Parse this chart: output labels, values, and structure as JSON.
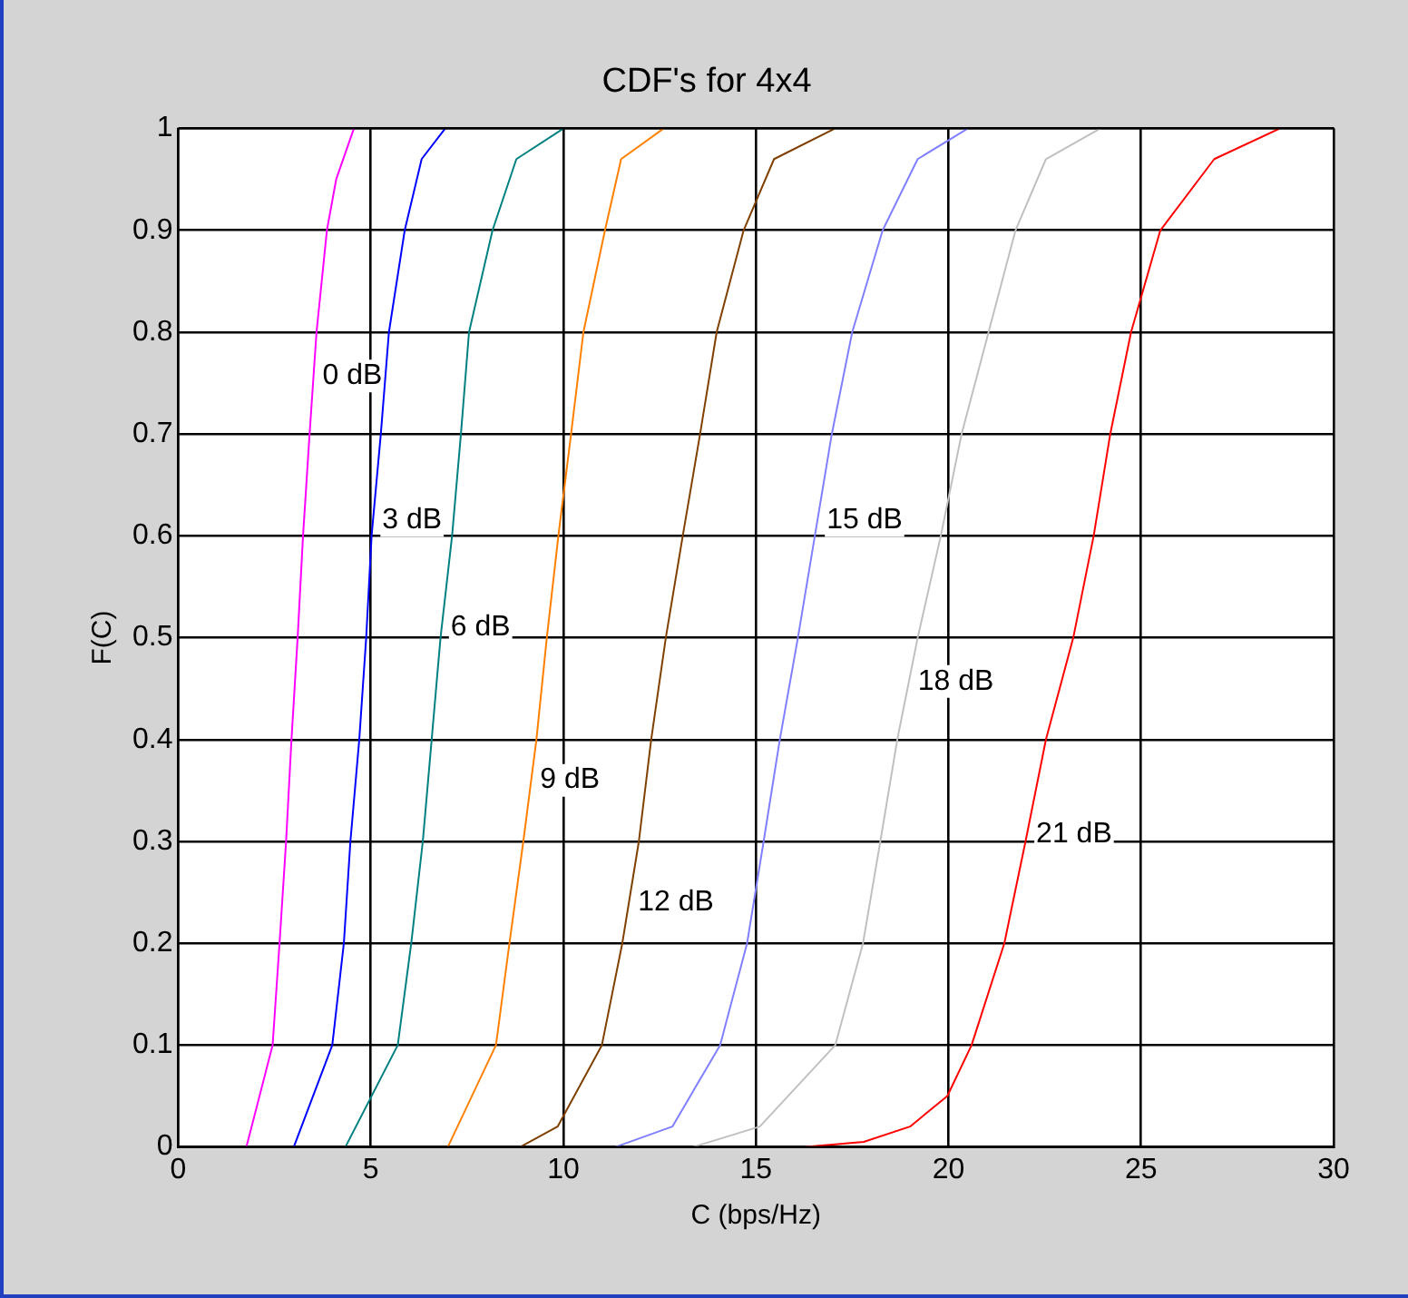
{
  "chart_data": {
    "type": "line",
    "title": "CDF's for 4x4",
    "xlabel": "C (bps/Hz)",
    "ylabel": "F(C)",
    "xlim": [
      0,
      30
    ],
    "xticks": [
      0,
      5,
      10,
      15,
      20,
      25,
      30
    ],
    "ylim": [
      0,
      1
    ],
    "yticks": [
      0,
      0.1,
      0.2,
      0.3,
      0.4,
      0.5,
      0.6,
      0.7,
      0.8,
      0.9,
      1
    ],
    "grid": true,
    "legend": false,
    "marker": "none",
    "line_style": "solid",
    "series": [
      {
        "color": "#ff00ff",
        "x": [
          1.77,
          2.45,
          2.63,
          2.8,
          2.94,
          3.1,
          3.24,
          3.41,
          3.59,
          3.86,
          4.1,
          4.56
        ],
        "values": [
          0,
          0.1,
          0.2,
          0.3,
          0.4,
          0.5,
          0.6,
          0.7,
          0.8,
          0.9,
          0.95,
          1
        ]
      },
      {
        "color": "#0000ff",
        "x": [
          3.0,
          4.0,
          4.3,
          4.47,
          4.7,
          4.88,
          5.02,
          5.26,
          5.47,
          5.88,
          6.32,
          6.93
        ],
        "values": [
          0,
          0.1,
          0.2,
          0.3,
          0.4,
          0.5,
          0.6,
          0.7,
          0.8,
          0.9,
          0.97,
          1
        ]
      },
      {
        "color": "#008080",
        "x": [
          4.34,
          5.7,
          6.05,
          6.35,
          6.58,
          6.81,
          7.11,
          7.34,
          7.55,
          8.16,
          8.78,
          10.0
        ],
        "values": [
          0,
          0.1,
          0.2,
          0.3,
          0.4,
          0.5,
          0.6,
          0.7,
          0.8,
          0.9,
          0.97,
          1
        ]
      },
      {
        "color": "#ff8000",
        "x": [
          7.0,
          8.25,
          8.6,
          8.96,
          9.3,
          9.57,
          9.87,
          10.2,
          10.52,
          11.08,
          11.5,
          12.6
        ],
        "values": [
          0,
          0.1,
          0.2,
          0.3,
          0.4,
          0.5,
          0.6,
          0.7,
          0.8,
          0.9,
          0.97,
          1
        ]
      },
      {
        "color": "#804000",
        "x": [
          8.88,
          9.85,
          11.0,
          11.53,
          11.96,
          12.28,
          12.66,
          13.1,
          13.55,
          13.98,
          14.68,
          15.47,
          17.05
        ],
        "values": [
          0,
          0.02,
          0.1,
          0.2,
          0.3,
          0.4,
          0.5,
          0.6,
          0.7,
          0.8,
          0.9,
          0.97,
          1
        ]
      },
      {
        "color": "#8080ff",
        "x": [
          11.35,
          12.83,
          14.07,
          14.77,
          15.2,
          15.62,
          16.09,
          16.53,
          16.97,
          17.5,
          18.29,
          19.2,
          20.5
        ],
        "values": [
          0,
          0.02,
          0.1,
          0.2,
          0.3,
          0.4,
          0.5,
          0.6,
          0.7,
          0.8,
          0.9,
          0.97,
          1
        ]
      },
      {
        "color": "#c0c0c0",
        "x": [
          13.37,
          15.1,
          17.06,
          17.78,
          18.23,
          18.67,
          19.2,
          19.8,
          20.34,
          21.04,
          21.74,
          22.53,
          23.94
        ],
        "values": [
          0,
          0.02,
          0.1,
          0.2,
          0.3,
          0.4,
          0.5,
          0.6,
          0.7,
          0.8,
          0.9,
          0.97,
          1
        ]
      },
      {
        "color": "#ff0000",
        "x": [
          16.3,
          17.8,
          19.0,
          19.97,
          20.6,
          21.45,
          22.0,
          22.53,
          23.24,
          23.77,
          24.2,
          24.74,
          25.5,
          26.9,
          28.6
        ],
        "values": [
          0,
          0.005,
          0.02,
          0.05,
          0.1,
          0.2,
          0.3,
          0.4,
          0.5,
          0.6,
          0.7,
          0.8,
          0.9,
          0.97,
          1
        ]
      }
    ],
    "annotations": [
      {
        "text": "0 dB",
        "x": 3.51,
        "y": 0.757
      },
      {
        "text": "3 dB",
        "x": 5.06,
        "y": 0.615
      },
      {
        "text": "6 dB",
        "x": 6.84,
        "y": 0.51
      },
      {
        "text": "9 dB",
        "x": 9.16,
        "y": 0.36
      },
      {
        "text": "12 dB",
        "x": 11.7,
        "y": 0.24
      },
      {
        "text": "15 dB",
        "x": 16.6,
        "y": 0.615
      },
      {
        "text": "18 dB",
        "x": 18.97,
        "y": 0.457
      },
      {
        "text": "21 dB",
        "x": 22.04,
        "y": 0.307
      }
    ]
  }
}
